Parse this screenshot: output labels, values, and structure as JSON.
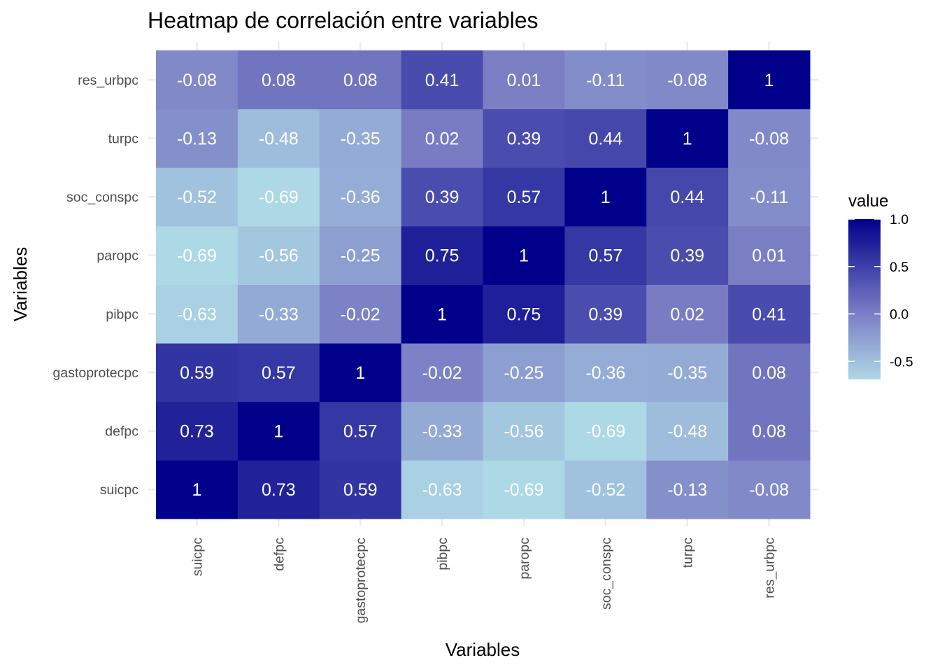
{
  "chart_data": {
    "type": "heatmap",
    "title": "Heatmap de correlación entre variables",
    "xlabel": "Variables",
    "ylabel": "Variables",
    "x_categories": [
      "suicpc",
      "defpc",
      "gastoprotecpc",
      "pibpc",
      "paropc",
      "soc_conspc",
      "turpc",
      "res_urbpc"
    ],
    "y_categories": [
      "suicpc",
      "defpc",
      "gastoprotecpc",
      "pibpc",
      "paropc",
      "soc_conspc",
      "turpc",
      "res_urbpc"
    ],
    "values": [
      [
        1,
        0.73,
        0.59,
        -0.63,
        -0.69,
        -0.52,
        -0.13,
        -0.08
      ],
      [
        0.73,
        1,
        0.57,
        -0.33,
        -0.56,
        -0.69,
        -0.48,
        0.08
      ],
      [
        0.59,
        0.57,
        1,
        -0.02,
        -0.25,
        -0.36,
        -0.35,
        0.08
      ],
      [
        -0.63,
        -0.33,
        -0.02,
        1,
        0.75,
        0.39,
        0.02,
        0.41
      ],
      [
        -0.69,
        -0.56,
        -0.25,
        0.75,
        1,
        0.57,
        0.39,
        0.01
      ],
      [
        -0.52,
        -0.69,
        -0.36,
        0.39,
        0.57,
        1,
        0.44,
        -0.11
      ],
      [
        -0.13,
        -0.48,
        -0.35,
        0.02,
        0.39,
        0.44,
        1,
        -0.08
      ],
      [
        -0.08,
        0.08,
        0.08,
        0.41,
        0.01,
        -0.11,
        -0.08,
        1
      ]
    ],
    "legend": {
      "title": "value",
      "ticks": [
        1.0,
        0.5,
        0.0,
        -0.5
      ],
      "tick_labels": [
        "1.0",
        "0.5",
        "0.0",
        "-0.5"
      ],
      "range": [
        -0.69,
        1.0
      ],
      "placement": "right"
    },
    "color_scale": {
      "low": "#ADD8E6",
      "mid": "#7B7FC4",
      "high": "#00008B",
      "midpoint": 0
    },
    "grid": true
  }
}
